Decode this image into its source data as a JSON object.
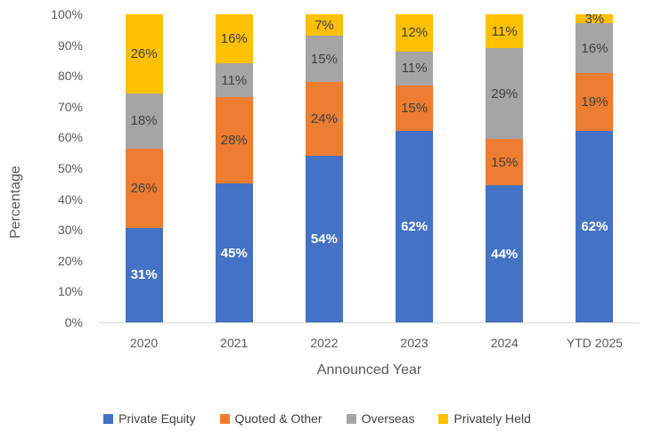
{
  "chart_data": {
    "type": "bar",
    "subtype": "stacked-100-percent",
    "title": "",
    "xlabel": "Announced Year",
    "ylabel": "Percentage",
    "categories": [
      "2020",
      "2021",
      "2022",
      "2023",
      "2024",
      "YTD 2025"
    ],
    "series": [
      {
        "name": "Private Equity",
        "color": "#4472C4",
        "label_color": "#FFFFFF",
        "values": [
          31,
          45,
          54,
          62,
          44,
          62
        ]
      },
      {
        "name": "Quoted & Other",
        "color": "#ED7D31",
        "label_color": "#404040",
        "values": [
          26,
          28,
          24,
          15,
          15,
          19
        ]
      },
      {
        "name": "Overseas",
        "color": "#A5A5A5",
        "label_color": "#404040",
        "values": [
          18,
          11,
          15,
          11,
          29,
          16
        ]
      },
      {
        "name": "Privately Held",
        "color": "#FFC000",
        "label_color": "#404040",
        "values": [
          26,
          16,
          7,
          12,
          11,
          3
        ]
      }
    ],
    "label_suffix": "%",
    "y_ticks": [
      "0%",
      "10%",
      "20%",
      "30%",
      "40%",
      "50%",
      "60%",
      "70%",
      "80%",
      "90%",
      "100%"
    ],
    "ylim": [
      0,
      100
    ],
    "gridlines": false,
    "legend_position": "bottom",
    "axis_line_color": "#D9D9D9",
    "axis_text_color": "#595959"
  }
}
